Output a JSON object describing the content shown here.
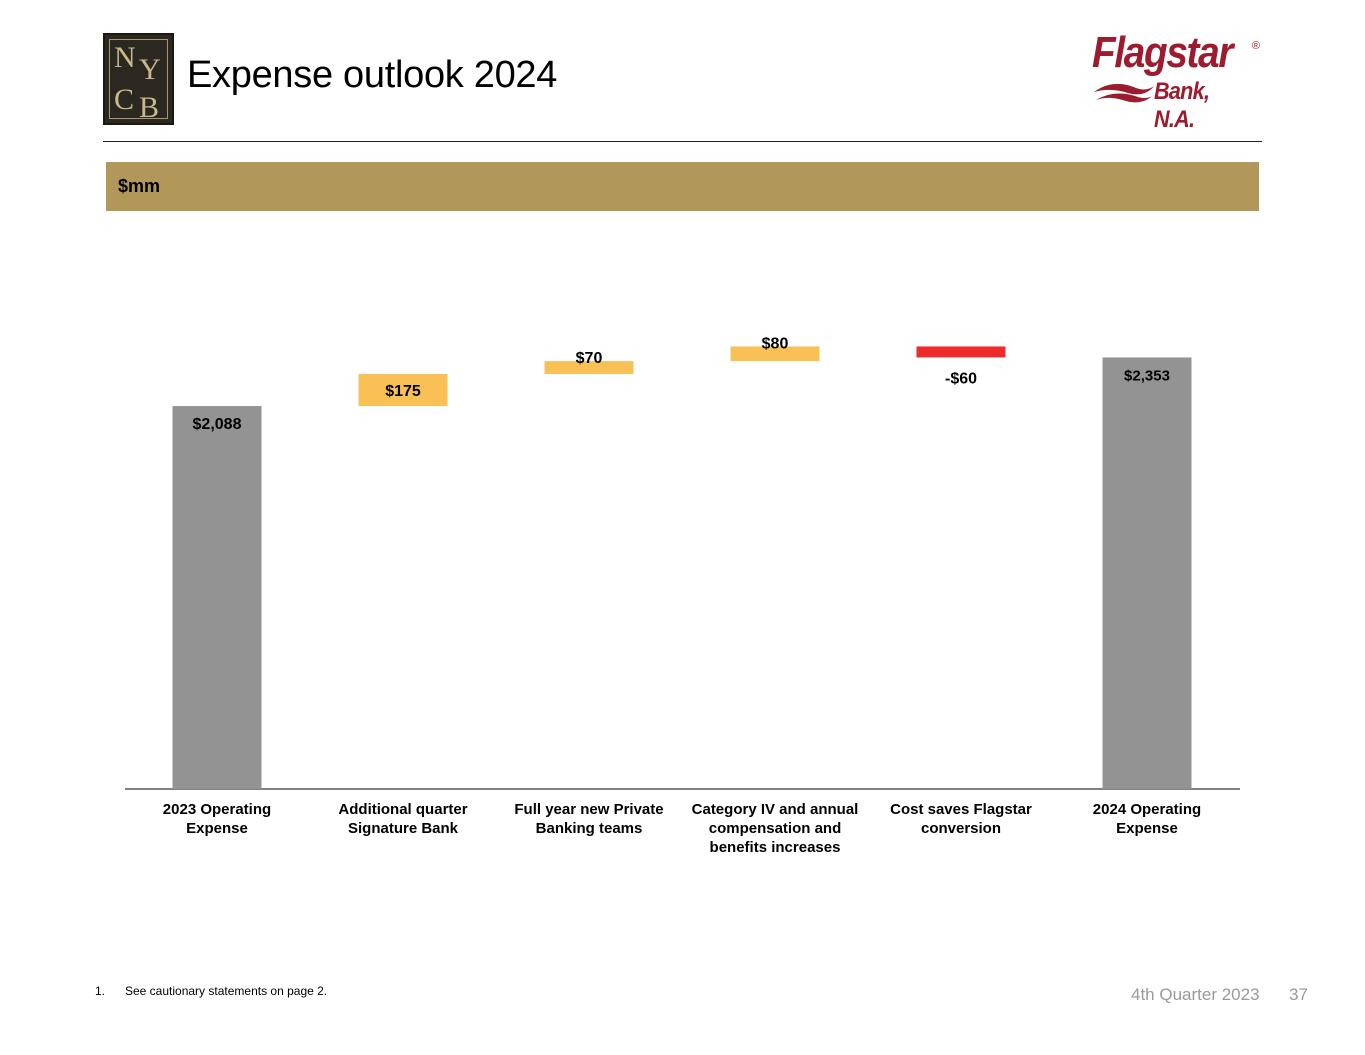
{
  "header": {
    "title": "Expense outlook 2024",
    "nycb_logo": {
      "letters": [
        "N",
        "Y",
        "C",
        "B"
      ]
    },
    "flagstar_logo": {
      "name": "Flagstar",
      "registered": "®",
      "subtitle": "Bank, N.A.",
      "color": "#9c1b2e"
    }
  },
  "band": {
    "label": "$mm",
    "color": "#b2975b"
  },
  "chart_data": {
    "type": "waterfall",
    "unit": "$mm",
    "ylim": [
      0,
      2500
    ],
    "categories": [
      "2023 Operating Expense",
      "Additional quarter Signature Bank",
      "Full year new Private Banking teams",
      "Category IV and annual compensation and benefits increases",
      "Cost saves Flagstar conversion",
      "2024 Operating Expense"
    ],
    "category_lines": [
      [
        "2023 Operating",
        "Expense"
      ],
      [
        "Additional quarter",
        "Signature Bank"
      ],
      [
        "Full year new Private",
        "Banking teams"
      ],
      [
        "Category IV and annual",
        "compensation and",
        "benefits increases"
      ],
      [
        "Cost saves Flagstar",
        "conversion"
      ],
      [
        "2024 Operating",
        "Expense"
      ]
    ],
    "steps": [
      {
        "kind": "total",
        "value": 2088,
        "label": "$2,088"
      },
      {
        "kind": "delta",
        "value": 175,
        "label": "$175"
      },
      {
        "kind": "delta",
        "value": 70,
        "label": "$70"
      },
      {
        "kind": "delta",
        "value": 80,
        "label": "$80"
      },
      {
        "kind": "delta",
        "value": -60,
        "label": "-$60"
      },
      {
        "kind": "total",
        "value": 2353,
        "label": "$2,353"
      }
    ],
    "colors": {
      "total": "#939393",
      "increase": "#f9c155",
      "decrease": "#ed2b2b"
    }
  },
  "footnote": {
    "number": "1.",
    "text": "See cautionary statements on page 2."
  },
  "footer": {
    "period": "4th Quarter 2023",
    "page": "37"
  }
}
